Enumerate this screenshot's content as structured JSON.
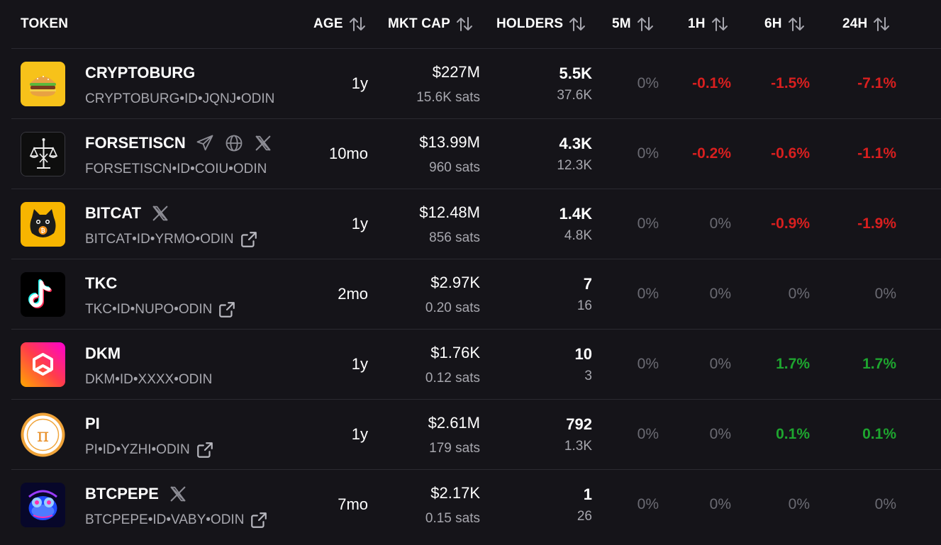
{
  "header": {
    "token": "TOKEN",
    "age": "AGE",
    "mkt_cap": "MKT CAP",
    "holders": "HOLDERS",
    "m5": "5M",
    "h1": "1H",
    "h6": "6H",
    "h24": "24H"
  },
  "rows": [
    {
      "name": "CRYPTOBURG",
      "id": "CRYPTOBURG•ID•JQNJ•ODIN",
      "age": "1y",
      "cap": "$227M",
      "sats": "15.6K sats",
      "holders": "5.5K",
      "holders2": "37.6K",
      "m5": "0%",
      "h1": "-0.1%",
      "h6": "-1.5%",
      "h24": "-7.1%"
    },
    {
      "name": "FORSETISCN",
      "id": "FORSETISCN•ID•COIU•ODIN",
      "age": "10mo",
      "cap": "$13.99M",
      "sats": "960 sats",
      "holders": "4.3K",
      "holders2": "12.3K",
      "m5": "0%",
      "h1": "-0.2%",
      "h6": "-0.6%",
      "h24": "-1.1%"
    },
    {
      "name": "BITCAT",
      "id": "BITCAT•ID•YRMO•ODIN",
      "age": "1y",
      "cap": "$12.48M",
      "sats": "856 sats",
      "holders": "1.4K",
      "holders2": "4.8K",
      "m5": "0%",
      "h1": "0%",
      "h6": "-0.9%",
      "h24": "-1.9%"
    },
    {
      "name": "TKC",
      "id": "TKC•ID•NUPO•ODIN",
      "age": "2mo",
      "cap": "$2.97K",
      "sats": "0.20 sats",
      "holders": "7",
      "holders2": "16",
      "m5": "0%",
      "h1": "0%",
      "h6": "0%",
      "h24": "0%"
    },
    {
      "name": "DKM",
      "id": "DKM•ID•XXXX•ODIN",
      "age": "1y",
      "cap": "$1.76K",
      "sats": "0.12 sats",
      "holders": "10",
      "holders2": "3",
      "m5": "0%",
      "h1": "0%",
      "h6": "1.7%",
      "h24": "1.7%"
    },
    {
      "name": "PI",
      "id": "PI•ID•YZHI•ODIN",
      "age": "1y",
      "cap": "$2.61M",
      "sats": "179 sats",
      "holders": "792",
      "holders2": "1.3K",
      "m5": "0%",
      "h1": "0%",
      "h6": "0.1%",
      "h24": "0.1%"
    },
    {
      "name": "BTCPEPE",
      "id": "BTCPEPE•ID•VABY•ODIN",
      "age": "7mo",
      "cap": "$2.17K",
      "sats": "0.15 sats",
      "holders": "1",
      "holders2": "26",
      "m5": "0%",
      "h1": "0%",
      "h6": "0%",
      "h24": "0%"
    }
  ],
  "colors": {
    "background": "#151419",
    "negative": "#d81f1f",
    "positive": "#1ea52f",
    "neutral": "#6b6b73"
  },
  "icons": {
    "sort": "sort-arrows-icon",
    "telegram": "telegram-icon",
    "website": "globe-icon",
    "x": "x-logo-icon",
    "external": "external-link-icon"
  }
}
